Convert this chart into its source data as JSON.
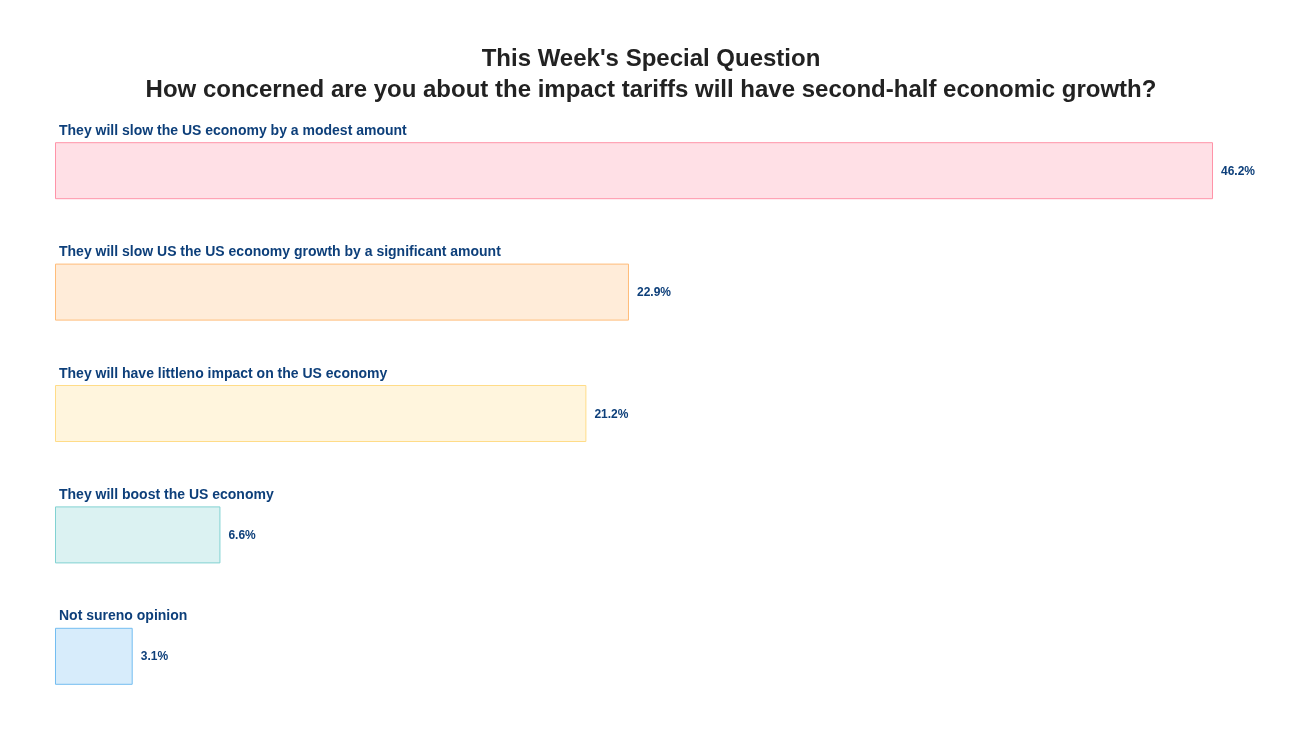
{
  "chart_data": {
    "type": "bar",
    "orientation": "horizontal",
    "title": "This Week's Special Question",
    "subtitle": "How concerned are you about the impact tariffs will have second-half economic growth?",
    "categories": [
      "They will slow the US economy by a modest amount",
      "They will slow US the US economy growth by a significant amount",
      "They will have littleno impact on the US economy",
      "They will boost the US economy",
      "Not sureno opinion"
    ],
    "values": [
      46.2,
      22.9,
      21.2,
      6.6,
      3.1
    ],
    "value_labels": [
      "46.2%",
      "22.9%",
      "21.2%",
      "6.6%",
      "3.1%"
    ],
    "colors": [
      "#ffe0e6",
      "#ffecd9",
      "#fff5dd",
      "#dbf2f2",
      "#d7ecfb"
    ]
  }
}
